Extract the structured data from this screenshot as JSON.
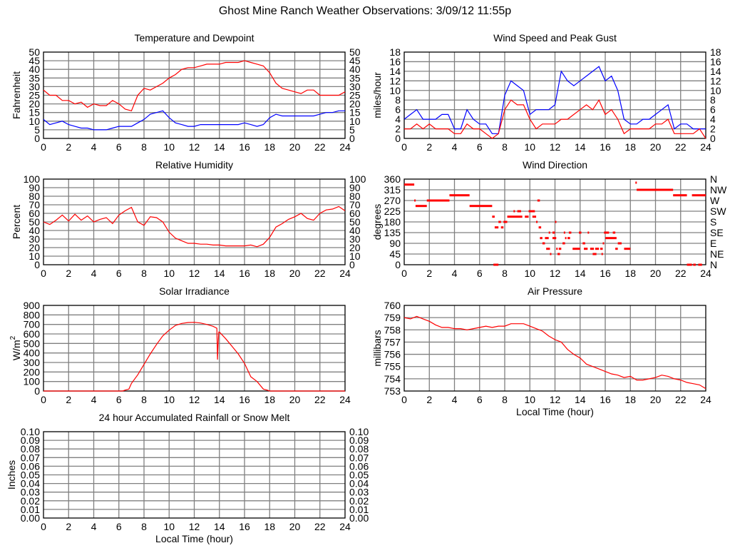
{
  "page_title": "Ghost Mine Ranch Weather Observations: 3/09/12 11:55p",
  "chart_data": [
    {
      "type": "line",
      "id": "temp",
      "title": "Temperature and Dewpoint",
      "xlabel": "",
      "ylabel": "Fahrenheit",
      "ylabel_sup": "",
      "xlim": [
        0,
        24
      ],
      "ylim": [
        0,
        50
      ],
      "grid": true,
      "xticks": [
        0,
        2,
        4,
        6,
        8,
        10,
        12,
        14,
        16,
        18,
        20,
        22,
        24
      ],
      "yticks": [
        0,
        5,
        10,
        15,
        20,
        25,
        30,
        35,
        40,
        45,
        50
      ],
      "ytick_labels": [
        "0",
        "5",
        "10",
        "15",
        "20",
        "25",
        "30",
        "35",
        "40",
        "45",
        "50"
      ],
      "right_labels": [
        "0",
        "5",
        "10",
        "15",
        "20",
        "25",
        "30",
        "35",
        "40",
        "45",
        "50"
      ],
      "x_step": 0.5,
      "series": [
        {
          "name": "Temperature",
          "color": "#ff0000",
          "values": [
            28,
            25,
            25,
            22,
            22,
            20,
            21,
            18,
            20,
            19,
            19,
            22,
            20,
            17,
            16,
            25,
            29,
            28,
            30,
            32,
            35,
            37,
            40,
            41,
            41,
            42,
            43,
            43,
            43,
            44,
            44,
            44,
            45,
            44,
            43,
            42,
            38,
            32,
            29,
            28,
            27,
            26,
            28,
            28,
            25,
            25,
            25,
            25,
            27
          ]
        },
        {
          "name": "Dewpoint",
          "color": "#0000ff",
          "values": [
            11,
            8,
            9,
            10,
            8,
            7,
            6,
            6,
            5,
            5,
            5,
            6,
            7,
            7,
            7,
            9,
            11,
            14,
            15,
            16,
            12,
            9,
            8,
            7,
            7,
            8,
            8,
            8,
            8,
            8,
            8,
            8,
            9,
            8,
            7,
            8,
            12,
            14,
            13,
            13,
            13,
            13,
            13,
            13,
            14,
            15,
            15,
            16,
            16
          ]
        }
      ]
    },
    {
      "type": "line",
      "id": "wind",
      "title": "Wind Speed and Peak Gust",
      "xlabel": "",
      "ylabel": "miles/hour",
      "ylabel_sup": "",
      "xlim": [
        0,
        24
      ],
      "ylim": [
        0,
        18
      ],
      "grid": true,
      "xticks": [
        0,
        2,
        4,
        6,
        8,
        10,
        12,
        14,
        16,
        18,
        20,
        22,
        24
      ],
      "yticks": [
        0,
        2,
        4,
        6,
        8,
        10,
        12,
        14,
        16,
        18
      ],
      "ytick_labels": [
        "0",
        "2",
        "4",
        "6",
        "8",
        "10",
        "12",
        "14",
        "16",
        "18"
      ],
      "right_labels": [
        "0",
        "2",
        "4",
        "6",
        "8",
        "10",
        "12",
        "14",
        "16",
        "18"
      ],
      "x_step": 0.5,
      "series": [
        {
          "name": "Peak Gust",
          "color": "#0000ff",
          "values": [
            4,
            5,
            6,
            4,
            4,
            4,
            5,
            5,
            2,
            2,
            6,
            4,
            3,
            3,
            1,
            1,
            9,
            12,
            11,
            10,
            5,
            6,
            6,
            6,
            7,
            14,
            12,
            11,
            12,
            13,
            14,
            15,
            12,
            13,
            10,
            4,
            3,
            3,
            4,
            4,
            5,
            6,
            7,
            2,
            3,
            3,
            2,
            2,
            2
          ]
        },
        {
          "name": "Wind Speed",
          "color": "#ff0000",
          "values": [
            2,
            2,
            3,
            2,
            3,
            2,
            2,
            2,
            1,
            1,
            3,
            2,
            2,
            1,
            0,
            1,
            6,
            8,
            7,
            7,
            4,
            2,
            3,
            3,
            3,
            4,
            4,
            5,
            6,
            7,
            6,
            8,
            5,
            6,
            4,
            1,
            2,
            2,
            2,
            2,
            3,
            3,
            4,
            1,
            1,
            1,
            1,
            2,
            0
          ]
        }
      ]
    },
    {
      "type": "line",
      "id": "rh",
      "title": "Relative Humidity",
      "xlabel": "",
      "ylabel": "Percent",
      "ylabel_sup": "",
      "xlim": [
        0,
        24
      ],
      "ylim": [
        0,
        100
      ],
      "grid": true,
      "xticks": [
        0,
        2,
        4,
        6,
        8,
        10,
        12,
        14,
        16,
        18,
        20,
        22,
        24
      ],
      "yticks": [
        0,
        10,
        20,
        30,
        40,
        50,
        60,
        70,
        80,
        90,
        100
      ],
      "ytick_labels": [
        "0",
        "10",
        "20",
        "30",
        "40",
        "50",
        "60",
        "70",
        "80",
        "90",
        "100"
      ],
      "right_labels": [
        "0",
        "10",
        "20",
        "30",
        "40",
        "50",
        "60",
        "70",
        "80",
        "90",
        "100"
      ],
      "x_step": 0.5,
      "series": [
        {
          "name": "Relative Humidity",
          "color": "#ff0000",
          "values": [
            50,
            47,
            52,
            58,
            51,
            59,
            52,
            57,
            50,
            53,
            55,
            48,
            58,
            63,
            67,
            50,
            46,
            56,
            55,
            50,
            38,
            31,
            28,
            25,
            25,
            24,
            24,
            23,
            23,
            22,
            22,
            22,
            22,
            23,
            21,
            24,
            32,
            44,
            48,
            53,
            56,
            60,
            54,
            52,
            60,
            64,
            65,
            68,
            63
          ]
        }
      ]
    },
    {
      "type": "scatter",
      "id": "winddir",
      "title": "Wind Direction",
      "xlabel": "",
      "ylabel": "degrees",
      "ylabel_sup": "",
      "xlim": [
        0,
        24
      ],
      "ylim": [
        0,
        360
      ],
      "grid": true,
      "xticks": [
        0,
        2,
        4,
        6,
        8,
        10,
        12,
        14,
        16,
        18,
        20,
        22,
        24
      ],
      "yticks": [
        0,
        45,
        90,
        135,
        180,
        225,
        270,
        315,
        360
      ],
      "ytick_labels": [
        "0",
        "45",
        "90",
        "135",
        "180",
        "225",
        "270",
        "315",
        "360"
      ],
      "right_labels": [
        "N",
        "NE",
        "E",
        "SE",
        "S",
        "SW",
        "W",
        "NW",
        "N"
      ],
      "segments_note": "each entry [start_hour, end_hour, degrees]",
      "segments": [
        [
          0,
          0.8,
          337
        ],
        [
          0.8,
          0.9,
          270
        ],
        [
          0.9,
          1.8,
          247
        ],
        [
          1.8,
          3.6,
          270
        ],
        [
          3.6,
          5.2,
          292
        ],
        [
          5.2,
          7.0,
          247
        ],
        [
          7.0,
          7.2,
          202
        ],
        [
          7.1,
          7.5,
          0
        ],
        [
          7.2,
          7.5,
          157
        ],
        [
          7.5,
          7.7,
          180
        ],
        [
          7.7,
          7.9,
          157
        ],
        [
          7.9,
          8.2,
          180
        ],
        [
          8.2,
          9.4,
          202
        ],
        [
          8.7,
          8.8,
          225
        ],
        [
          9.0,
          9.3,
          225
        ],
        [
          9.6,
          9.9,
          202
        ],
        [
          9.9,
          10.4,
          225
        ],
        [
          10.2,
          10.5,
          202
        ],
        [
          10.5,
          10.6,
          180
        ],
        [
          10.6,
          10.8,
          270
        ],
        [
          10.7,
          10.9,
          157
        ],
        [
          10.8,
          11.0,
          112
        ],
        [
          11.0,
          11.2,
          90
        ],
        [
          11.2,
          11.5,
          112
        ],
        [
          11.5,
          11.6,
          135
        ],
        [
          11.3,
          11.6,
          67
        ],
        [
          11.6,
          11.7,
          45
        ],
        [
          11.8,
          12.0,
          135
        ],
        [
          11.8,
          12.1,
          112
        ],
        [
          12.0,
          12.1,
          180
        ],
        [
          12.1,
          12.2,
          67
        ],
        [
          12.2,
          12.4,
          45
        ],
        [
          12.3,
          12.5,
          67
        ],
        [
          12.6,
          12.8,
          90
        ],
        [
          12.7,
          12.8,
          135
        ],
        [
          12.8,
          12.9,
          112
        ],
        [
          13.0,
          13.2,
          112
        ],
        [
          13.1,
          13.3,
          135
        ],
        [
          13.4,
          14.0,
          67
        ],
        [
          13.9,
          14.1,
          135
        ],
        [
          14.2,
          14.4,
          90
        ],
        [
          14.3,
          14.6,
          67
        ],
        [
          14.6,
          14.7,
          135
        ],
        [
          14.8,
          15.1,
          67
        ],
        [
          15.0,
          15.3,
          45
        ],
        [
          15.2,
          15.5,
          67
        ],
        [
          15.6,
          15.8,
          67
        ],
        [
          15.7,
          15.8,
          45
        ],
        [
          15.8,
          15.9,
          90
        ],
        [
          15.9,
          16.3,
          135
        ],
        [
          16.0,
          16.9,
          112
        ],
        [
          16.6,
          16.8,
          135
        ],
        [
          16.8,
          17.0,
          67
        ],
        [
          17.0,
          17.3,
          90
        ],
        [
          17.5,
          18.0,
          67
        ],
        [
          18.4,
          18.5,
          345
        ],
        [
          18.5,
          21.4,
          315
        ],
        [
          21.4,
          22.5,
          292
        ],
        [
          22.5,
          22.9,
          0
        ],
        [
          23.0,
          23.2,
          0
        ],
        [
          23.4,
          23.7,
          0
        ],
        [
          22.9,
          24,
          292
        ]
      ],
      "color": "#ff0000"
    },
    {
      "type": "line",
      "id": "solar",
      "title": "Solar Irradiance",
      "xlabel": "",
      "ylabel": "W/m",
      "ylabel_sup": "2",
      "xlim": [
        0,
        24
      ],
      "ylim": [
        0,
        900
      ],
      "grid": true,
      "xticks": [
        0,
        2,
        4,
        6,
        8,
        10,
        12,
        14,
        16,
        18,
        20,
        22,
        24
      ],
      "yticks": [
        0,
        100,
        200,
        300,
        400,
        500,
        600,
        700,
        800,
        900
      ],
      "ytick_labels": [
        "0",
        "100",
        "200",
        "300",
        "400",
        "500",
        "600",
        "700",
        "800",
        "900"
      ],
      "right_labels": [],
      "series": [
        {
          "name": "Solar Irradiance",
          "color": "#ff0000",
          "x": [
            0,
            6.3,
            6.5,
            6.8,
            7,
            7.5,
            8,
            8.5,
            9,
            9.5,
            10,
            10.5,
            11,
            11.5,
            12,
            12.5,
            13,
            13.5,
            13.8,
            13.85,
            13.9,
            13.95,
            14,
            14.5,
            15,
            15.5,
            16,
            16.5,
            17,
            17.5,
            17.8,
            18,
            24
          ],
          "values": [
            0,
            0,
            10,
            20,
            80,
            170,
            280,
            390,
            490,
            580,
            640,
            690,
            710,
            720,
            722,
            715,
            700,
            680,
            660,
            330,
            500,
            620,
            620,
            550,
            470,
            390,
            290,
            150,
            100,
            20,
            10,
            0,
            0
          ]
        }
      ]
    },
    {
      "type": "line",
      "id": "pressure",
      "title": "Air Pressure",
      "xlabel": "Local Time (hour)",
      "ylabel": "millibars",
      "ylabel_sup": "",
      "xlim": [
        0,
        24
      ],
      "ylim": [
        753,
        760
      ],
      "grid": true,
      "xticks": [
        0,
        2,
        4,
        6,
        8,
        10,
        12,
        14,
        16,
        18,
        20,
        22,
        24
      ],
      "yticks": [
        753,
        754,
        755,
        756,
        757,
        758,
        759,
        760
      ],
      "ytick_labels": [
        "753",
        "754",
        "755",
        "756",
        "757",
        "758",
        "759",
        "760"
      ],
      "right_labels": [],
      "x_step": 0.5,
      "series": [
        {
          "name": "Air Pressure",
          "color": "#ff0000",
          "values": [
            759,
            758.9,
            759.1,
            758.9,
            758.7,
            758.4,
            758.2,
            758.2,
            758.1,
            758.1,
            758,
            758.1,
            758.2,
            758.3,
            758.2,
            758.3,
            758.3,
            758.5,
            758.5,
            758.5,
            758.3,
            758.1,
            757.9,
            757.5,
            757.2,
            757,
            756.4,
            756,
            755.7,
            755.2,
            755,
            754.8,
            754.6,
            754.4,
            754.3,
            754.1,
            754.2,
            753.9,
            753.9,
            754,
            754.1,
            754.3,
            754.2,
            754,
            753.9,
            753.7,
            753.6,
            753.5,
            753.2
          ]
        }
      ]
    },
    {
      "type": "line",
      "id": "rain",
      "title": "24 hour Accumulated Rainfall or Snow Melt",
      "xlabel": "Local Time (hour)",
      "ylabel": "Inches",
      "ylabel_sup": "",
      "xlim": [
        0,
        24
      ],
      "ylim": [
        0,
        0.1
      ],
      "grid": true,
      "xticks": [
        0,
        2,
        4,
        6,
        8,
        10,
        12,
        14,
        16,
        18,
        20,
        22,
        24
      ],
      "yticks": [
        0,
        0.01,
        0.02,
        0.03,
        0.04,
        0.05,
        0.06,
        0.07,
        0.08,
        0.09,
        0.1
      ],
      "ytick_labels": [
        "0.00",
        "0.01",
        "0.02",
        "0.03",
        "0.04",
        "0.05",
        "0.06",
        "0.07",
        "0.08",
        "0.09",
        "0.10"
      ],
      "right_labels": [
        "0.00",
        "0.01",
        "0.02",
        "0.03",
        "0.04",
        "0.05",
        "0.06",
        "0.07",
        "0.08",
        "0.09",
        "0.10"
      ],
      "series": []
    }
  ]
}
